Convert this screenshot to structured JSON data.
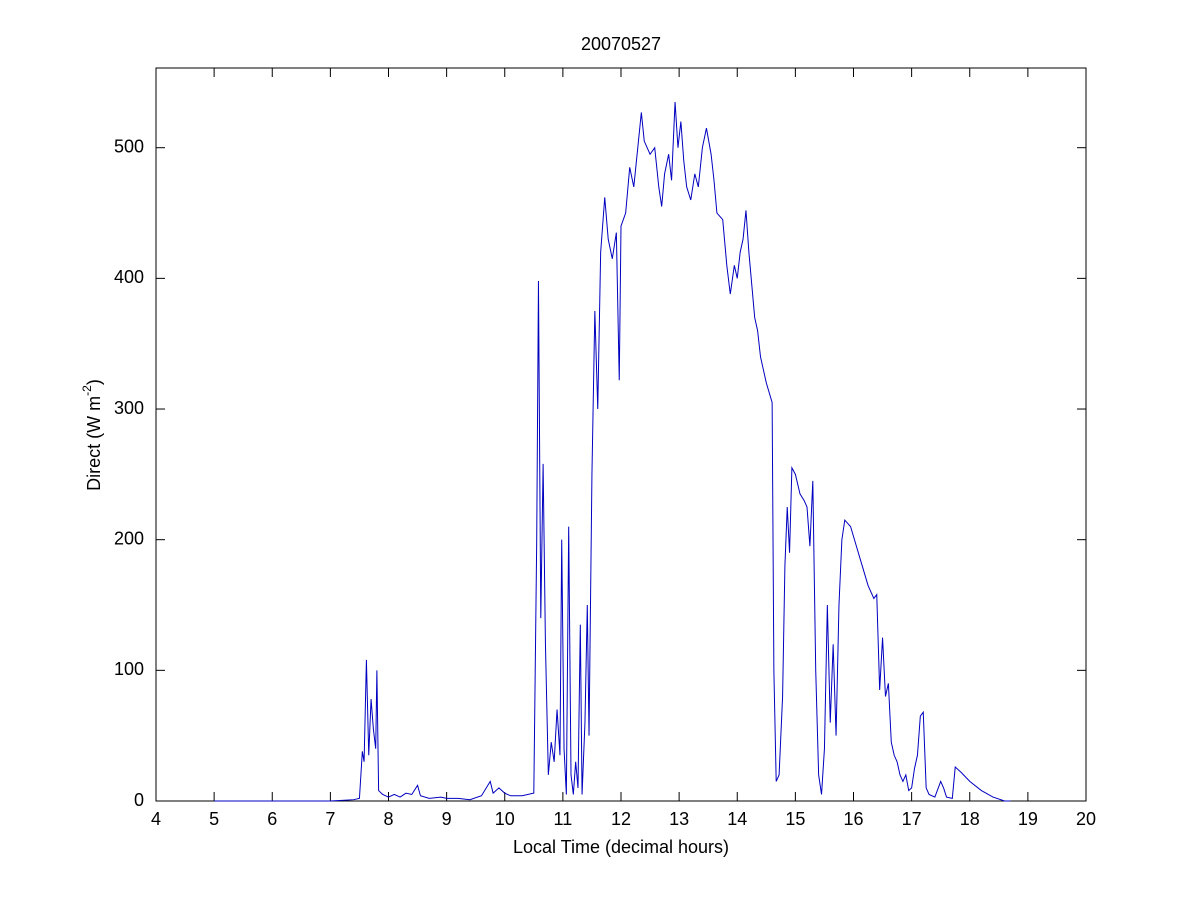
{
  "chart_data": {
    "type": "line",
    "title": "20070527",
    "xlabel": "Local Time (decimal hours)",
    "ylabel": {
      "text": "Direct (W m",
      "superscript": "-2",
      "suffix": ")"
    },
    "xlim": [
      4,
      20
    ],
    "xticks": [
      4,
      5,
      6,
      7,
      8,
      9,
      10,
      11,
      12,
      13,
      14,
      15,
      16,
      17,
      18,
      19,
      20
    ],
    "ylim": [
      0,
      561
    ],
    "yticks": [
      0,
      100,
      200,
      300,
      400,
      500
    ],
    "grid": false,
    "series": [
      {
        "color": "#0000c0",
        "x": [
          5,
          7,
          7.4,
          7.5,
          7.55,
          7.58,
          7.62,
          7.66,
          7.7,
          7.74,
          7.78,
          7.8,
          7.83,
          7.9,
          8.0,
          8.1,
          8.2,
          8.3,
          8.4,
          8.5,
          8.55,
          8.7,
          8.9,
          9.0,
          9.2,
          9.4,
          9.6,
          9.75,
          9.8,
          9.9,
          10.0,
          10.1,
          10.3,
          10.5,
          10.55,
          10.58,
          10.62,
          10.66,
          10.7,
          10.75,
          10.8,
          10.85,
          10.9,
          10.95,
          10.98,
          11.02,
          11.06,
          11.1,
          11.14,
          11.18,
          11.22,
          11.26,
          11.3,
          11.33,
          11.38,
          11.42,
          11.45,
          11.5,
          11.55,
          11.6,
          11.65,
          11.72,
          11.78,
          11.85,
          11.92,
          11.97,
          12.0,
          12.08,
          12.15,
          12.22,
          12.3,
          12.35,
          12.4,
          12.5,
          12.58,
          12.65,
          12.7,
          12.75,
          12.82,
          12.87,
          12.93,
          12.98,
          13.03,
          13.08,
          13.13,
          13.2,
          13.27,
          13.33,
          13.4,
          13.47,
          13.55,
          13.6,
          13.65,
          13.75,
          13.82,
          13.88,
          13.95,
          14.0,
          14.05,
          14.1,
          14.15,
          14.2,
          14.3,
          14.35,
          14.4,
          14.5,
          14.6,
          14.63,
          14.67,
          14.72,
          14.78,
          14.82,
          14.86,
          14.9,
          14.94,
          15.0,
          15.08,
          15.15,
          15.2,
          15.25,
          15.3,
          15.35,
          15.4,
          15.45,
          15.5,
          15.55,
          15.6,
          15.65,
          15.7,
          15.75,
          15.8,
          15.85,
          15.95,
          16.05,
          16.15,
          16.25,
          16.35,
          16.4,
          16.45,
          16.5,
          16.55,
          16.6,
          16.65,
          16.7,
          16.75,
          16.8,
          16.85,
          16.9,
          16.95,
          17.0,
          17.05,
          17.1,
          17.15,
          17.2,
          17.25,
          17.3,
          17.4,
          17.5,
          17.55,
          17.6,
          17.7,
          17.75,
          17.85,
          18.0,
          18.2,
          18.4,
          18.6,
          18.7
        ],
        "values": [
          0,
          0,
          1,
          2,
          38,
          30,
          108,
          35,
          78,
          55,
          40,
          100,
          8,
          5,
          3,
          5,
          3,
          6,
          5,
          12,
          4,
          2,
          3,
          2,
          2,
          1,
          4,
          15,
          6,
          10,
          6,
          4,
          4,
          6,
          200,
          398,
          140,
          258,
          120,
          20,
          45,
          30,
          70,
          35,
          200,
          40,
          5,
          210,
          20,
          5,
          30,
          10,
          135,
          5,
          60,
          150,
          50,
          250,
          375,
          300,
          420,
          462,
          430,
          415,
          435,
          322,
          440,
          450,
          485,
          470,
          505,
          527,
          505,
          495,
          500,
          470,
          455,
          480,
          495,
          475,
          535,
          500,
          520,
          490,
          470,
          460,
          480,
          470,
          500,
          515,
          495,
          475,
          450,
          445,
          410,
          388,
          410,
          400,
          420,
          430,
          452,
          420,
          370,
          360,
          340,
          320,
          305,
          100,
          15,
          20,
          80,
          180,
          225,
          190,
          255,
          250,
          235,
          230,
          225,
          195,
          245,
          100,
          20,
          5,
          40,
          150,
          60,
          120,
          50,
          150,
          200,
          215,
          210,
          195,
          180,
          165,
          155,
          158,
          85,
          125,
          80,
          90,
          45,
          35,
          30,
          20,
          15,
          20,
          8,
          10,
          25,
          35,
          65,
          68,
          10,
          5,
          3,
          15,
          10,
          3,
          2,
          26,
          22,
          15,
          8,
          3,
          0,
          0
        ]
      }
    ]
  }
}
